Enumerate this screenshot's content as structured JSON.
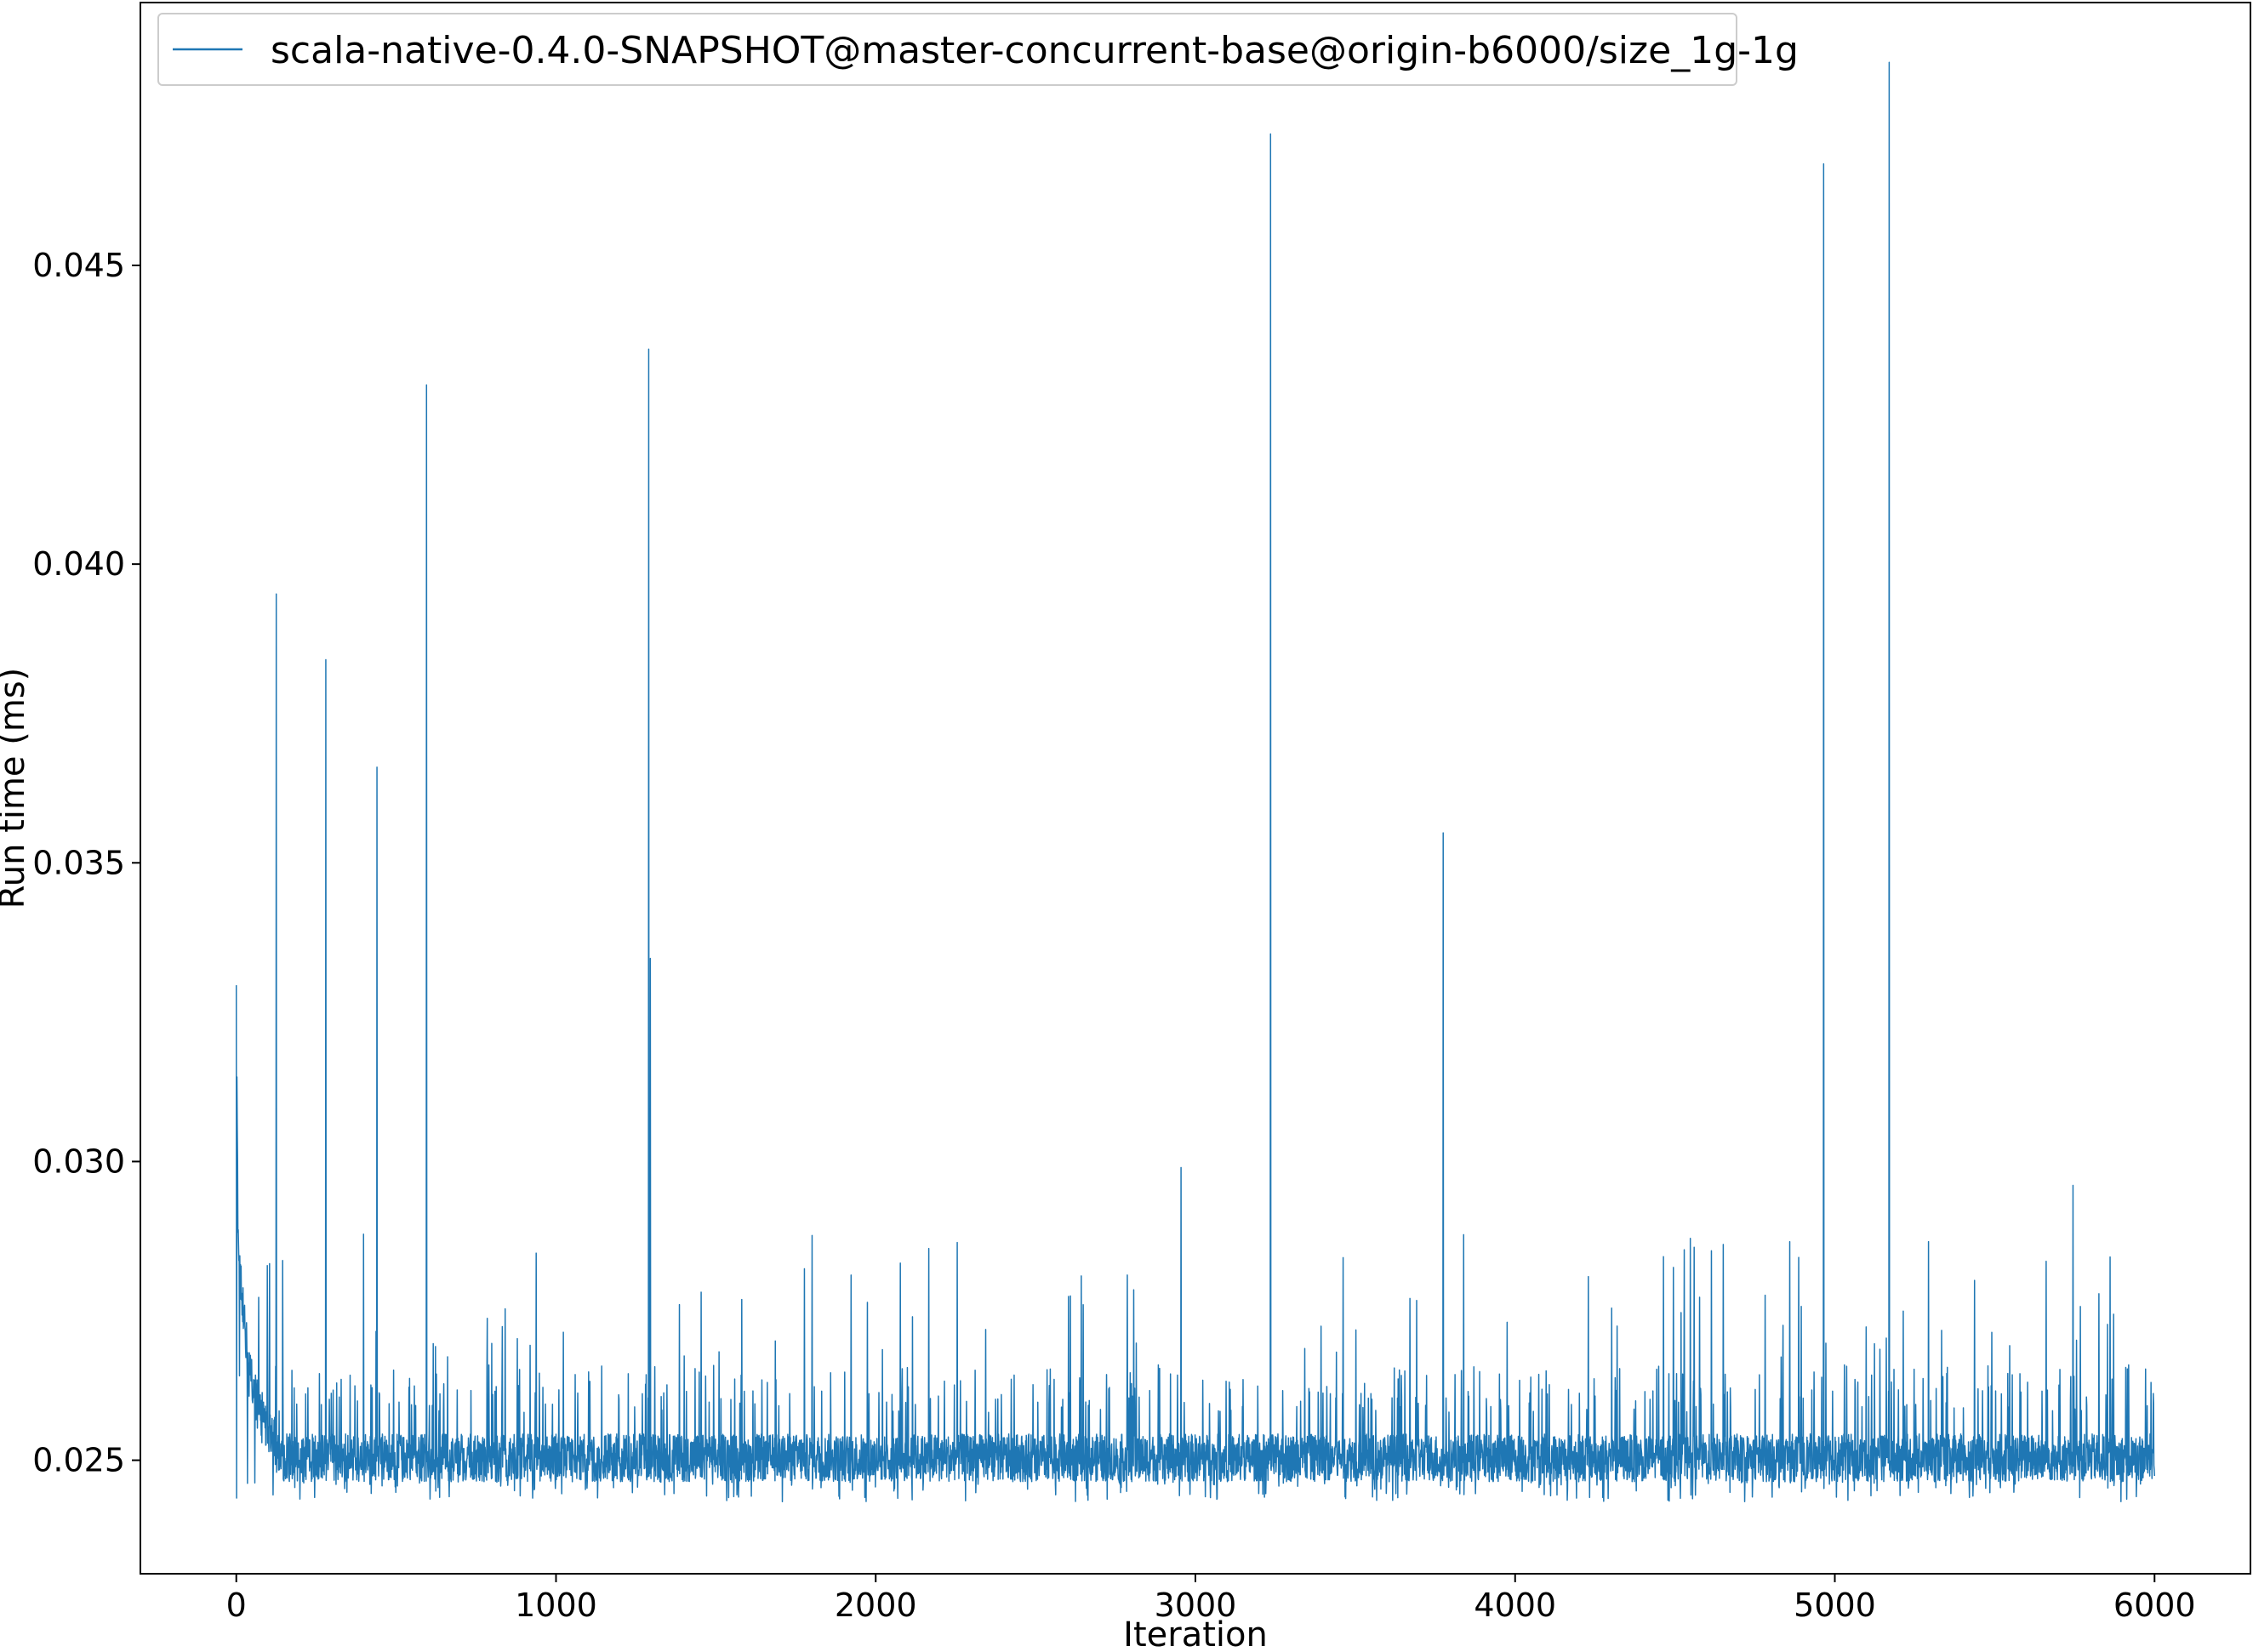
{
  "chart_data": {
    "type": "line",
    "title": "",
    "xlabel": "Iteration",
    "ylabel": "Run time (ms)",
    "xlim": [
      -300,
      6300
    ],
    "ylim": [
      0.0231,
      0.0494
    ],
    "x_ticks": [
      0,
      1000,
      2000,
      3000,
      4000,
      5000,
      6000
    ],
    "x_tick_labels": [
      "0",
      "1000",
      "2000",
      "3000",
      "4000",
      "5000",
      "6000"
    ],
    "y_ticks": [
      0.025,
      0.03,
      0.035,
      0.04,
      0.045
    ],
    "y_tick_labels": [
      "0.025",
      "0.030",
      "0.035",
      "0.040",
      "0.045"
    ],
    "grid": false,
    "legend": {
      "position": "top-left",
      "entries": [
        "scala-native-0.4.0-SNAPSHOT@master-concurrent-base@origin-b6000/size_1g-1g"
      ]
    },
    "series": [
      {
        "name": "scala-native-0.4.0-SNAPSHOT@master-concurrent-base@origin-b6000/size_1g-1g",
        "color": "#1f77b4",
        "n_points": 6001,
        "baseline": 0.025,
        "noise_amplitude": 0.0005,
        "warmup": [
          {
            "x": 0,
            "y": 0.0327
          },
          {
            "x": 5,
            "y": 0.029
          },
          {
            "x": 12,
            "y": 0.0281
          },
          {
            "x": 25,
            "y": 0.0272
          },
          {
            "x": 50,
            "y": 0.0262
          },
          {
            "x": 80,
            "y": 0.0256
          },
          {
            "x": 120,
            "y": 0.0253
          }
        ],
        "spikes": [
          {
            "x": 125,
            "y": 0.0395
          },
          {
            "x": 280,
            "y": 0.0384
          },
          {
            "x": 440,
            "y": 0.0366
          },
          {
            "x": 595,
            "y": 0.043
          },
          {
            "x": 1290,
            "y": 0.0436
          },
          {
            "x": 1295,
            "y": 0.0334
          },
          {
            "x": 2955,
            "y": 0.0299
          },
          {
            "x": 3235,
            "y": 0.0472
          },
          {
            "x": 3775,
            "y": 0.0355
          },
          {
            "x": 4965,
            "y": 0.0467
          },
          {
            "x": 5170,
            "y": 0.0484
          },
          {
            "x": 5745,
            "y": 0.0296
          }
        ],
        "minor_spike_range": [
          0.0265,
          0.0288
        ]
      }
    ]
  }
}
